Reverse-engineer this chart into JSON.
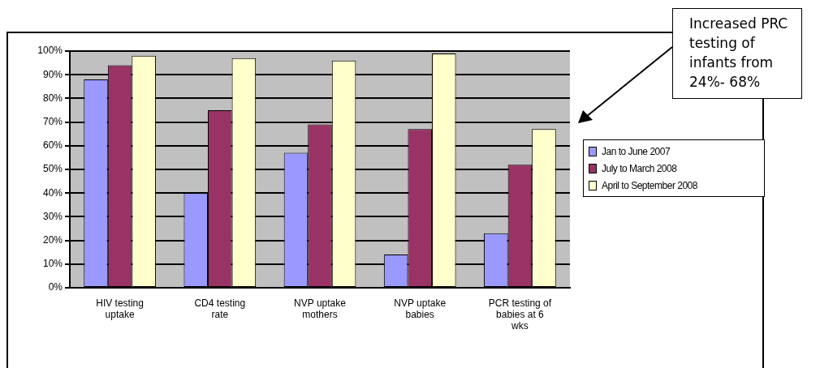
{
  "chart_data": {
    "type": "bar",
    "categories": [
      "HIV testing uptake",
      "CD4 testing rate",
      "NVP uptake mothers",
      "NVP uptake babies",
      "PCR testing of babies at 6 wks"
    ],
    "series": [
      {
        "name": "Jan to June 2007",
        "color": "#9999ff",
        "values": [
          88,
          40,
          57,
          14,
          23
        ]
      },
      {
        "name": "July to March 2008",
        "color": "#993366",
        "values": [
          94,
          75,
          69,
          67,
          52
        ]
      },
      {
        "name": "April to September 2008",
        "color": "#ffffcc",
        "values": [
          98,
          97,
          96,
          99,
          67
        ]
      }
    ],
    "ylim": [
      0,
      100
    ],
    "yticks": [
      {
        "value": 0,
        "label": "0%"
      },
      {
        "value": 10,
        "label": "10%"
      },
      {
        "value": 20,
        "label": "20%"
      },
      {
        "value": 30,
        "label": "30%"
      },
      {
        "value": 40,
        "label": "40%"
      },
      {
        "value": 50,
        "label": "50%"
      },
      {
        "value": 60,
        "label": "60%"
      },
      {
        "value": 70,
        "label": "70%"
      },
      {
        "value": 80,
        "label": "80%"
      },
      {
        "value": 90,
        "label": "90%"
      },
      {
        "value": 100,
        "label": "100%"
      }
    ],
    "grid": "y",
    "legend": "right",
    "annotations": [
      "Increased PRC testing of infants from 24%- 68%"
    ]
  }
}
